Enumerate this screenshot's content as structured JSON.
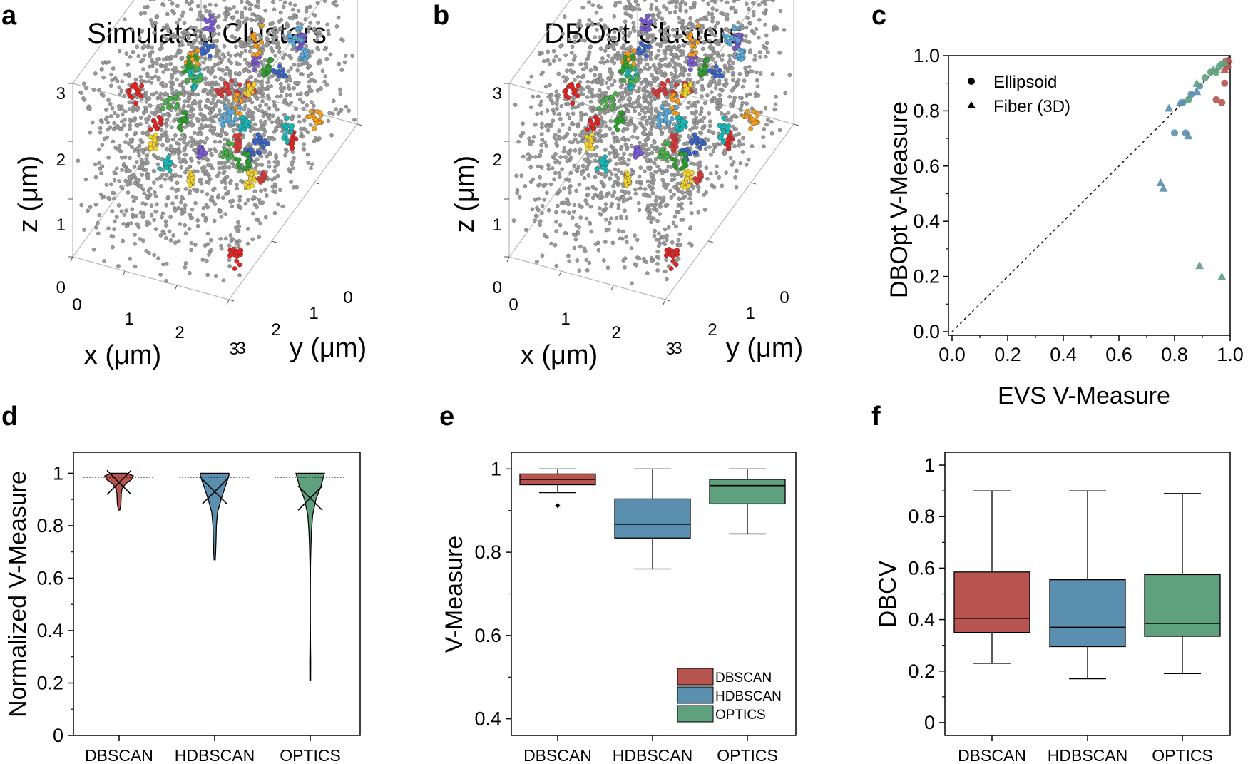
{
  "panel_labels": [
    "a",
    "b",
    "c",
    "d",
    "e",
    "f"
  ],
  "colors": {
    "dbscan": "#b85450",
    "hdbscan": "#5b8faf",
    "optics": "#5fa07d",
    "background_points": "#9a9a9a",
    "cluster_palette": [
      "#e32222",
      "#2fa02f",
      "#f39d1b",
      "#3a64c8",
      "#f2d12a",
      "#18b8b8",
      "#7b5bd4",
      "#4ab04a",
      "#d83a3a",
      "#58a9d8"
    ]
  },
  "chart_data": [
    {
      "id": "a",
      "type": "scatter",
      "title": "Simulated Clusters",
      "xlabel": "x (μm)",
      "ylabel": "y (μm)",
      "zlabel": "z (μm)",
      "x_ticks": [
        "0",
        "1",
        "2",
        "3"
      ],
      "y_ticks": [
        "0",
        "1",
        "2",
        "3"
      ],
      "z_ticks": [
        "0",
        "1",
        "2",
        "3"
      ],
      "xlim": [
        0,
        3
      ],
      "ylim": [
        0,
        3
      ],
      "zlim": [
        0,
        3
      ],
      "background_points": 2000,
      "clusters": 42
    },
    {
      "id": "b",
      "type": "scatter",
      "title": "DBOpt Clusters",
      "xlabel": "x (μm)",
      "ylabel": "y (μm)",
      "zlabel": "z (μm)",
      "x_ticks": [
        "0",
        "1",
        "2",
        "3"
      ],
      "y_ticks": [
        "0",
        "1",
        "2",
        "3"
      ],
      "z_ticks": [
        "0",
        "1",
        "2",
        "3"
      ],
      "xlim": [
        0,
        3
      ],
      "ylim": [
        0,
        3
      ],
      "zlim": [
        0,
        3
      ],
      "background_points": 2000,
      "clusters": 41
    },
    {
      "id": "c",
      "type": "scatter",
      "xlabel": "EVS V-Measure",
      "ylabel": "DBOpt V-Measure",
      "xlim": [
        0,
        1
      ],
      "ylim": [
        0,
        1
      ],
      "x_ticks": [
        "0.0",
        "0.2",
        "0.4",
        "0.6",
        "0.8",
        "1.0"
      ],
      "y_ticks": [
        "0.0",
        "0.2",
        "0.4",
        "0.6",
        "0.8",
        "1.0"
      ],
      "reference_line": "y = x",
      "legend": [
        {
          "label": "Ellipsoid",
          "marker": "circle"
        },
        {
          "label": "Fiber (3D)",
          "marker": "triangle"
        }
      ],
      "series": [
        {
          "name": "DBSCAN",
          "color_key": "dbscan",
          "ellipsoid": [
            [
              0.95,
              0.84
            ],
            [
              0.97,
              0.83
            ],
            [
              0.98,
              0.9
            ],
            [
              0.99,
              0.96
            ],
            [
              0.985,
              0.98
            ]
          ],
          "fiber": [
            [
              0.98,
              0.95
            ],
            [
              0.99,
              0.97
            ],
            [
              0.995,
              0.985
            ]
          ]
        },
        {
          "name": "HDBSCAN",
          "color_key": "hdbscan",
          "ellipsoid": [
            [
              0.8,
              0.72
            ],
            [
              0.84,
              0.72
            ],
            [
              0.83,
              0.83
            ],
            [
              0.86,
              0.86
            ],
            [
              0.89,
              0.89
            ]
          ],
          "fiber": [
            [
              0.75,
              0.54
            ],
            [
              0.76,
              0.52
            ],
            [
              0.78,
              0.81
            ],
            [
              0.82,
              0.83
            ],
            [
              0.85,
              0.71
            ],
            [
              0.88,
              0.87
            ]
          ]
        },
        {
          "name": "OPTICS",
          "color_key": "optics",
          "ellipsoid": [
            [
              0.85,
              0.84
            ],
            [
              0.91,
              0.92
            ],
            [
              0.93,
              0.94
            ],
            [
              0.95,
              0.94
            ],
            [
              0.96,
              0.96
            ],
            [
              0.97,
              0.97
            ]
          ],
          "fiber": [
            [
              0.89,
              0.24
            ],
            [
              0.97,
              0.2
            ],
            [
              0.88,
              0.9
            ],
            [
              0.94,
              0.95
            ],
            [
              0.98,
              0.975
            ]
          ]
        }
      ]
    },
    {
      "id": "d",
      "type": "violin",
      "ylabel": "Normalized V-Measure",
      "categories": [
        "DBSCAN",
        "HDBSCAN",
        "OPTICS"
      ],
      "ylim": [
        0,
        1.08
      ],
      "y_ticks": [
        "0",
        "0.2",
        "0.4",
        "0.6",
        "0.8",
        "1"
      ],
      "reference_line": 0.985,
      "series": [
        {
          "name": "DBSCAN",
          "color_key": "dbscan",
          "min": 0.86,
          "max": 1.0,
          "mean": 0.965,
          "profile": [
            [
              0.86,
              0.05
            ],
            [
              0.88,
              0.12
            ],
            [
              0.9,
              0.14
            ],
            [
              0.92,
              0.15
            ],
            [
              0.94,
              0.2
            ],
            [
              0.96,
              0.45
            ],
            [
              0.975,
              0.85
            ],
            [
              0.99,
              1.0
            ],
            [
              1.0,
              0.55
            ]
          ]
        },
        {
          "name": "HDBSCAN",
          "color_key": "hdbscan",
          "min": 0.67,
          "max": 1.0,
          "mean": 0.93,
          "profile": [
            [
              0.67,
              0.04
            ],
            [
              0.7,
              0.07
            ],
            [
              0.75,
              0.1
            ],
            [
              0.8,
              0.12
            ],
            [
              0.85,
              0.2
            ],
            [
              0.9,
              0.45
            ],
            [
              0.95,
              0.75
            ],
            [
              0.99,
              1.0
            ],
            [
              1.0,
              1.0
            ]
          ]
        },
        {
          "name": "OPTICS",
          "color_key": "optics",
          "min": 0.21,
          "max": 1.0,
          "mean": 0.905,
          "profile": [
            [
              0.21,
              0.03
            ],
            [
              0.28,
              0.035
            ],
            [
              0.35,
              0.02
            ],
            [
              0.45,
              0.01
            ],
            [
              0.55,
              0.01
            ],
            [
              0.65,
              0.02
            ],
            [
              0.72,
              0.05
            ],
            [
              0.78,
              0.09
            ],
            [
              0.84,
              0.17
            ],
            [
              0.9,
              0.4
            ],
            [
              0.95,
              0.75
            ],
            [
              1.0,
              1.0
            ]
          ]
        }
      ]
    },
    {
      "id": "e",
      "type": "box",
      "ylabel": "V-Measure",
      "categories": [
        "DBSCAN",
        "HDBSCAN",
        "OPTICS"
      ],
      "ylim": [
        0.36,
        1.04
      ],
      "y_ticks": [
        "0.4",
        "0.6",
        "0.8",
        "1"
      ],
      "legend": [
        "DBSCAN",
        "HDBSCAN",
        "OPTICS"
      ],
      "series": [
        {
          "name": "DBSCAN",
          "color_key": "dbscan",
          "whisker_low": 0.943,
          "q1": 0.962,
          "median": 0.975,
          "q3": 0.988,
          "whisker_high": 1.0,
          "outliers": [
            0.912
          ]
        },
        {
          "name": "HDBSCAN",
          "color_key": "hdbscan",
          "whisker_low": 0.76,
          "q1": 0.834,
          "median": 0.867,
          "q3": 0.928,
          "whisker_high": 1.0,
          "outliers": []
        },
        {
          "name": "OPTICS",
          "color_key": "optics",
          "whisker_low": 0.844,
          "q1": 0.916,
          "median": 0.96,
          "q3": 0.975,
          "whisker_high": 1.0,
          "outliers": []
        }
      ]
    },
    {
      "id": "f",
      "type": "box",
      "ylabel": "DBCV",
      "categories": [
        "DBSCAN",
        "HDBSCAN",
        "OPTICS"
      ],
      "ylim": [
        -0.05,
        1.05
      ],
      "y_ticks": [
        "0",
        "0.2",
        "0.4",
        "0.6",
        "0.8",
        "1"
      ],
      "series": [
        {
          "name": "DBSCAN",
          "color_key": "dbscan",
          "whisker_low": 0.23,
          "q1": 0.35,
          "median": 0.405,
          "q3": 0.585,
          "whisker_high": 0.9
        },
        {
          "name": "HDBSCAN",
          "color_key": "hdbscan",
          "whisker_low": 0.17,
          "q1": 0.295,
          "median": 0.37,
          "q3": 0.555,
          "whisker_high": 0.9
        },
        {
          "name": "OPTICS",
          "color_key": "optics",
          "whisker_low": 0.19,
          "q1": 0.335,
          "median": 0.385,
          "q3": 0.575,
          "whisker_high": 0.89
        }
      ]
    }
  ]
}
